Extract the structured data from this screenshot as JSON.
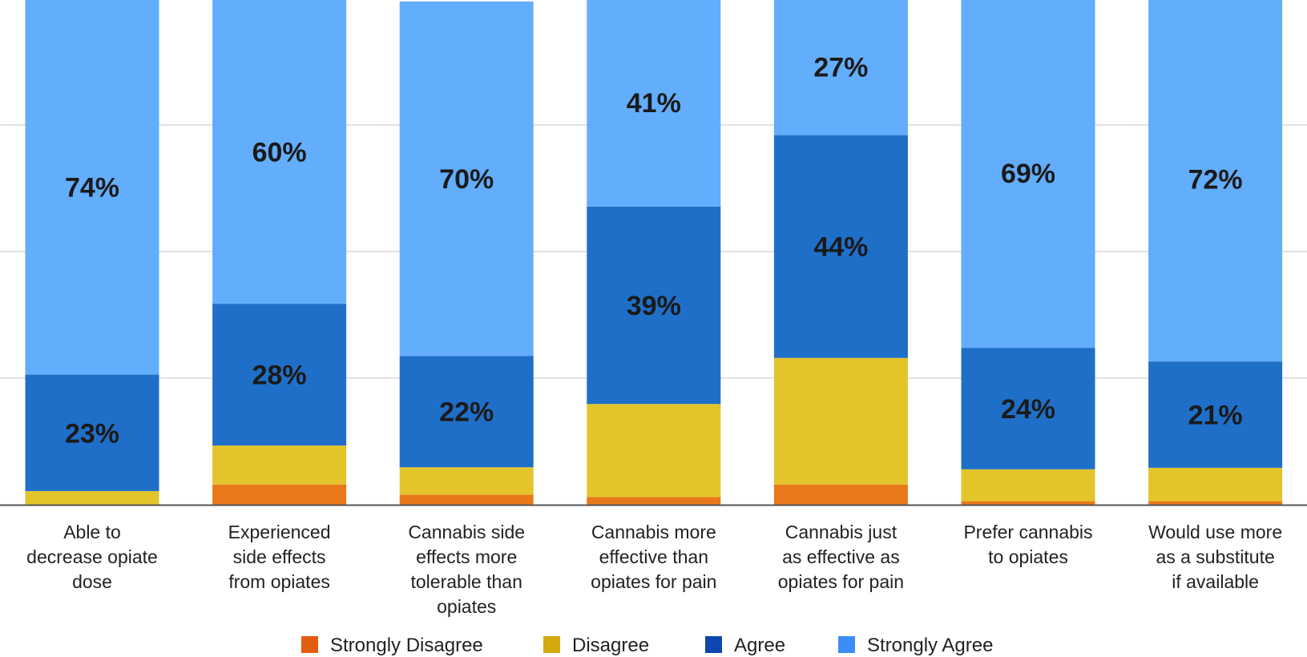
{
  "chart_data": {
    "type": "bar",
    "stacked": true,
    "ylim": [
      0,
      100
    ],
    "grid": true,
    "legend_position": "bottom",
    "categories": [
      [
        "Able to",
        "decrease opiate",
        "dose"
      ],
      [
        "Experienced",
        "side effects",
        "from opiates"
      ],
      [
        "Cannabis side",
        "effects more",
        "tolerable than",
        "opiates"
      ],
      [
        "Cannabis more",
        "effective than",
        "opiates for pain"
      ],
      [
        "Cannabis just",
        "as effective as",
        "opiates for pain"
      ],
      [
        "Prefer cannabis",
        "to opiates"
      ],
      [
        "Would use more",
        "as a substitute",
        "if available"
      ]
    ],
    "series": [
      {
        "name": "Strongly Disagree",
        "color": "#E8781A",
        "values": [
          0,
          4,
          2,
          1.5,
          4,
          0.7,
          0.7
        ]
      },
      {
        "name": "Disagree",
        "color": "#E3C52B",
        "values": [
          2.7,
          7.7,
          5.4,
          18.4,
          25,
          6.3,
          6.6
        ]
      },
      {
        "name": "Agree",
        "color": "#1F6FC8",
        "values": [
          23,
          28,
          22,
          39,
          44,
          24,
          21
        ]
      },
      {
        "name": "Strongly Agree",
        "color": "#62ADFC",
        "values": [
          74,
          60,
          70,
          41,
          27,
          69,
          72
        ]
      }
    ],
    "data_labels": {
      "Agree": [
        "23%",
        "28%",
        "22%",
        "39%",
        "44%",
        "24%",
        "21%"
      ],
      "Strongly Agree": [
        "74%",
        "60%",
        "70%",
        "41%",
        "27%",
        "69%",
        "72%"
      ]
    },
    "legend_swatches": [
      "#E35D0E",
      "#D4A80F",
      "#0F47B0",
      "#3B8DF5"
    ]
  }
}
